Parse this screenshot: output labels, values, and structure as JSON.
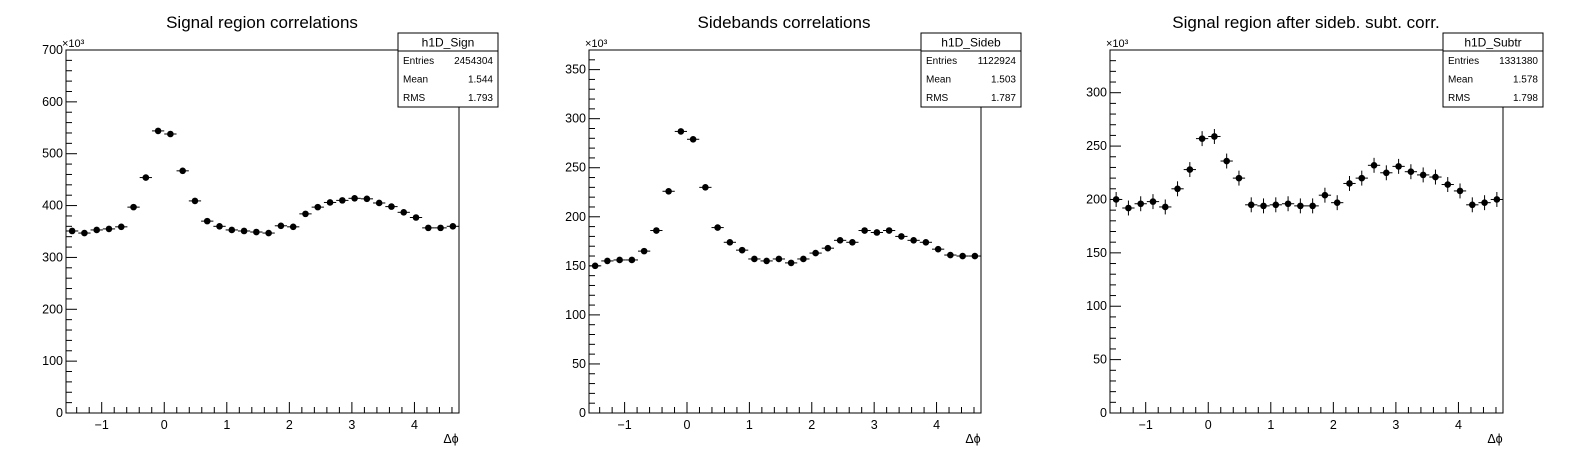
{
  "chart_data": [
    {
      "type": "scatter",
      "title": "Signal region correlations",
      "xlabel": "Δϕ",
      "ylabel": "",
      "xlim": [
        -1.5708,
        4.7124
      ],
      "ylim": [
        0,
        700000
      ],
      "y_multiplier_label": "×10³",
      "x_ticks": [
        -1,
        0,
        1,
        2,
        3,
        4
      ],
      "x_tick_labels": [
        "−1",
        "0",
        "1",
        "2",
        "3",
        "4"
      ],
      "y_ticks": [
        0,
        100000,
        200000,
        300000,
        400000,
        500000,
        600000,
        700000
      ],
      "y_tick_labels": [
        "0",
        "100",
        "200",
        "300",
        "400",
        "500",
        "600",
        "700"
      ],
      "stats": {
        "name": "h1D_Sign",
        "rows": [
          {
            "label": "Entries",
            "value": "2454304"
          },
          {
            "label": "Mean",
            "value": "1.544"
          },
          {
            "label": "RMS",
            "value": "1.793"
          }
        ]
      },
      "series": [
        {
          "x": [
            -1.4726,
            -1.2763,
            -1.0799,
            -0.8836,
            -0.6872,
            -0.4909,
            -0.2945,
            -0.0982,
            0.0982,
            0.2945,
            0.4909,
            0.6872,
            0.8836,
            1.0799,
            1.2763,
            1.4726,
            1.669,
            1.8653,
            2.0617,
            2.258,
            2.4544,
            2.6507,
            2.8471,
            3.0434,
            3.2398,
            3.4361,
            3.6325,
            3.8288,
            4.0252,
            4.2215,
            4.4179,
            4.6142
          ],
          "y": [
            351000,
            347000,
            353000,
            355000,
            359000,
            397000,
            454000,
            544000,
            538000,
            467000,
            409000,
            370000,
            360000,
            353000,
            351000,
            349000,
            347000,
            361000,
            359000,
            384000,
            397000,
            406000,
            410000,
            414000,
            413000,
            405000,
            398000,
            387000,
            377000,
            357000,
            357000,
            360000
          ],
          "yerr": [
            2500,
            2500,
            2500,
            2500,
            2500,
            2500,
            2500,
            2500,
            2500,
            2500,
            2500,
            2500,
            2500,
            2500,
            2500,
            2500,
            2500,
            2500,
            2500,
            2500,
            2500,
            2500,
            2500,
            2500,
            2500,
            2500,
            2500,
            2500,
            2500,
            2500,
            2500,
            2500
          ]
        }
      ]
    },
    {
      "type": "scatter",
      "title": "Sidebands correlations",
      "xlabel": "Δϕ",
      "ylabel": "",
      "xlim": [
        -1.5708,
        4.7124
      ],
      "ylim": [
        0,
        370000
      ],
      "y_multiplier_label": "×10³",
      "x_ticks": [
        -1,
        0,
        1,
        2,
        3,
        4
      ],
      "x_tick_labels": [
        "−1",
        "0",
        "1",
        "2",
        "3",
        "4"
      ],
      "y_ticks": [
        0,
        50000,
        100000,
        150000,
        200000,
        250000,
        300000,
        350000
      ],
      "y_tick_labels": [
        "0",
        "50",
        "100",
        "150",
        "200",
        "250",
        "300",
        "350"
      ],
      "stats": {
        "name": "h1D_Sideb",
        "rows": [
          {
            "label": "Entries",
            "value": "1122924"
          },
          {
            "label": "Mean",
            "value": "1.503"
          },
          {
            "label": "RMS",
            "value": "1.787"
          }
        ]
      },
      "series": [
        {
          "x": [
            -1.4726,
            -1.2763,
            -1.0799,
            -0.8836,
            -0.6872,
            -0.4909,
            -0.2945,
            -0.0982,
            0.0982,
            0.2945,
            0.4909,
            0.6872,
            0.8836,
            1.0799,
            1.2763,
            1.4726,
            1.669,
            1.8653,
            2.0617,
            2.258,
            2.4544,
            2.6507,
            2.8471,
            3.0434,
            3.2398,
            3.4361,
            3.6325,
            3.8288,
            4.0252,
            4.2215,
            4.4179,
            4.6142
          ],
          "y": [
            150000,
            155000,
            156000,
            156000,
            165000,
            186000,
            226000,
            287000,
            279000,
            230000,
            189000,
            174000,
            166000,
            157000,
            155000,
            157000,
            153000,
            157000,
            163000,
            168000,
            176000,
            174000,
            186000,
            184000,
            186000,
            180000,
            176000,
            174000,
            167000,
            161000,
            160000,
            160000
          ],
          "yerr": [
            1300,
            1300,
            1300,
            1300,
            1300,
            1300,
            1300,
            1300,
            1300,
            1300,
            1300,
            1300,
            1300,
            1300,
            1300,
            1300,
            1300,
            1300,
            1300,
            1300,
            1300,
            1300,
            1300,
            1300,
            1300,
            1300,
            1300,
            1300,
            1300,
            1300,
            1300,
            1300
          ]
        }
      ]
    },
    {
      "type": "scatter",
      "title": "Signal region after sideb. subt. corr.",
      "xlabel": "Δϕ",
      "ylabel": "",
      "xlim": [
        -1.5708,
        4.7124
      ],
      "ylim": [
        0,
        340000
      ],
      "y_multiplier_label": "×10³",
      "x_ticks": [
        -1,
        0,
        1,
        2,
        3,
        4
      ],
      "x_tick_labels": [
        "−1",
        "0",
        "1",
        "2",
        "3",
        "4"
      ],
      "y_ticks": [
        0,
        50000,
        100000,
        150000,
        200000,
        250000,
        300000
      ],
      "y_tick_labels": [
        "0",
        "50",
        "100",
        "150",
        "200",
        "250",
        "300"
      ],
      "stats": {
        "name": "h1D_Subtr",
        "rows": [
          {
            "label": "Entries",
            "value": "1331380"
          },
          {
            "label": "Mean",
            "value": "1.578"
          },
          {
            "label": "RMS",
            "value": "1.798"
          }
        ]
      },
      "series": [
        {
          "x": [
            -1.4726,
            -1.2763,
            -1.0799,
            -0.8836,
            -0.6872,
            -0.4909,
            -0.2945,
            -0.0982,
            0.0982,
            0.2945,
            0.4909,
            0.6872,
            0.8836,
            1.0799,
            1.2763,
            1.4726,
            1.669,
            1.8653,
            2.0617,
            2.258,
            2.4544,
            2.6507,
            2.8471,
            3.0434,
            3.2398,
            3.4361,
            3.6325,
            3.8288,
            4.0252,
            4.2215,
            4.4179,
            4.6142
          ],
          "y": [
            200000,
            192000,
            196000,
            198000,
            193000,
            210000,
            228000,
            257000,
            259000,
            236000,
            220000,
            195000,
            194000,
            195000,
            196000,
            194000,
            194000,
            204000,
            197000,
            215000,
            220000,
            232000,
            225000,
            231000,
            226000,
            223000,
            221000,
            214000,
            208000,
            195000,
            197000,
            200000
          ],
          "yerr": [
            7000,
            7000,
            7000,
            7000,
            7000,
            7000,
            7000,
            7000,
            7000,
            7000,
            7000,
            7000,
            7000,
            7000,
            7000,
            7000,
            7000,
            7000,
            7000,
            7000,
            7000,
            7000,
            7000,
            7000,
            7000,
            7000,
            7000,
            7000,
            7000,
            7000,
            7000,
            7000
          ]
        }
      ]
    }
  ]
}
